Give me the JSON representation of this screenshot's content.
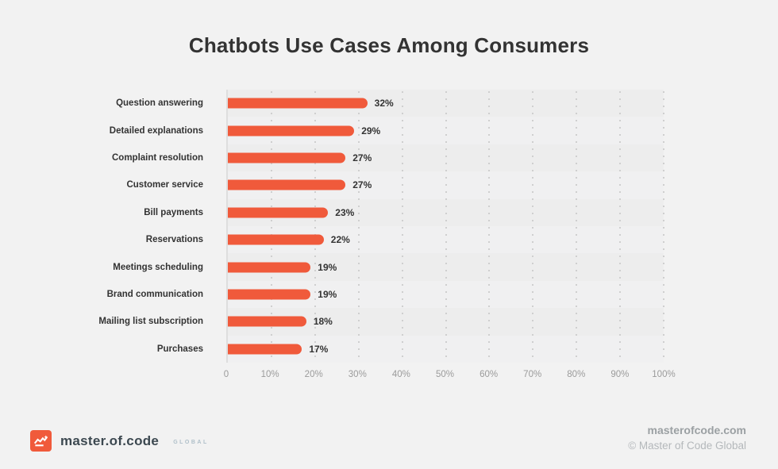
{
  "title": "Chatbots Use Cases Among Consumers",
  "chart_data": {
    "type": "bar",
    "orientation": "horizontal",
    "title": "Chatbots Use Cases Among Consumers",
    "categories": [
      "Question answering",
      "Detailed explanations",
      "Complaint resolution",
      "Customer service",
      "Bill payments",
      "Reservations",
      "Meetings scheduling",
      "Brand communication",
      "Mailing list subscription",
      "Purchases"
    ],
    "values": [
      32,
      29,
      27,
      27,
      23,
      22,
      19,
      19,
      18,
      17
    ],
    "value_labels": [
      "32%",
      "29%",
      "27%",
      "27%",
      "23%",
      "22%",
      "19%",
      "19%",
      "18%",
      "17%"
    ],
    "x_ticks": [
      "0",
      "10%",
      "20%",
      "30%",
      "40%",
      "50%",
      "60%",
      "70%",
      "80%",
      "90%",
      "100%"
    ],
    "x_tick_values": [
      0,
      10,
      20,
      30,
      40,
      50,
      60,
      70,
      80,
      90,
      100
    ],
    "xlim": [
      0,
      100
    ],
    "grid": "dotted-vertical",
    "legend": "none"
  },
  "footer": {
    "logo_text": "master.of.code",
    "logo_suffix": "GLOBAL",
    "logo_icon": "zigzag-chart-icon",
    "website": "masterofcode.com",
    "copyright": "© Master of Code Global"
  },
  "colors": {
    "background": "#F2F2F2",
    "bar": "#F05A3B",
    "band_odd": "#EDEDED",
    "band_even": "#F0F0F1",
    "title_text": "#333333",
    "tick_text": "#9B9B9B",
    "logo_accent": "#F05A3B"
  }
}
